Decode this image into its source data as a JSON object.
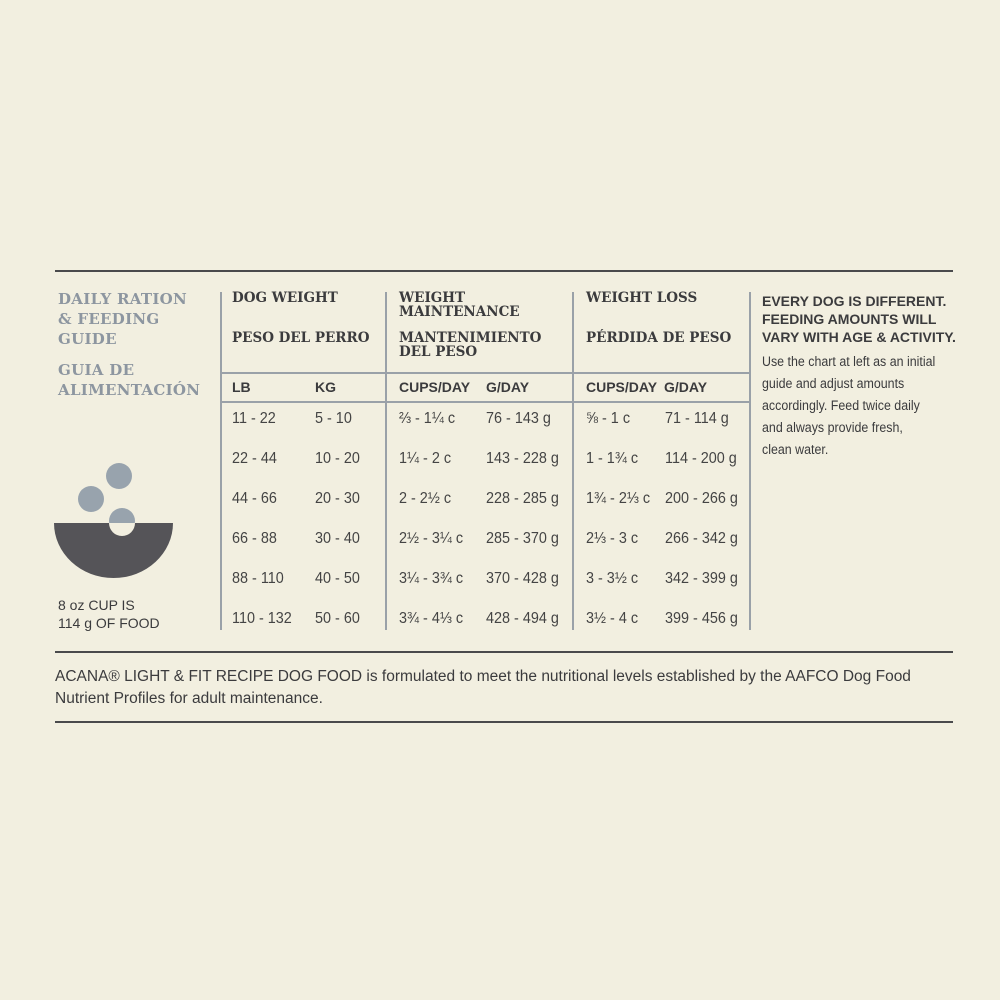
{
  "guide_title": [
    "DAILY RATION",
    "& FEEDING",
    "GUIDE"
  ],
  "guide_title_es": [
    "GUIA DE",
    "ALIMENTACIÓN"
  ],
  "cup_note": [
    "8 oz CUP IS",
    "114 g OF FOOD"
  ],
  "columns": {
    "dog_weight": {
      "title": "DOG WEIGHT",
      "title_es": "PESO DEL PERRO",
      "sub": [
        "LB",
        "KG"
      ]
    },
    "maintenance": {
      "title": "WEIGHT MAINTENANCE",
      "title_es": "MANTENIMIENTO DEL PESO",
      "sub": [
        "CUPS/DAY",
        "G/DAY"
      ]
    },
    "loss": {
      "title": "WEIGHT LOSS",
      "title_es": "PÉRDIDA DE PESO",
      "sub": [
        "CUPS/DAY",
        "G/DAY"
      ]
    }
  },
  "rows": [
    [
      "11 - 22",
      "5 - 10",
      "⅔ - 1¼ c",
      "76 - 143 g",
      "⅝ - 1 c",
      "71 - 114 g"
    ],
    [
      "22 - 44",
      "10 - 20",
      "1¼ - 2 c",
      "143 - 228 g",
      "1 - 1¾ c",
      "114 - 200 g"
    ],
    [
      "44 - 66",
      "20 - 30",
      "2 - 2½ c",
      "228 - 285 g",
      "1¾ - 2⅓ c",
      "200 - 266 g"
    ],
    [
      "66 - 88",
      "30 - 40",
      "2½ - 3¼ c",
      "285 - 370 g",
      "2⅓ - 3 c",
      "266 - 342 g"
    ],
    [
      "88 - 110",
      "40 - 50",
      "3¼ - 3¾ c",
      "370 - 428 g",
      "3 - 3½ c",
      "342 - 399 g"
    ],
    [
      "110 - 132",
      "50 - 60",
      "3¾ - 4⅓ c",
      "428 - 494 g",
      "3½ - 4 c",
      "399 - 456 g"
    ]
  ],
  "side_heading": [
    "EVERY DOG IS DIFFERENT.",
    "FEEDING AMOUNTS WILL",
    "VARY WITH AGE & ACTIVITY."
  ],
  "side_text": [
    "Use the chart at left as an initial",
    "guide and adjust amounts",
    "accordingly. Feed twice daily",
    "and always provide fresh,",
    "clean water."
  ],
  "footer": "ACANA® LIGHT & FIT RECIPE DOG FOOD is formulated to meet the nutritional levels established by the AAFCO Dog Food Nutrient Profiles for adult maintenance.",
  "colors": {
    "background": "#f2efe0",
    "title_gray": "#8d96a0",
    "bowl": "#555458",
    "kibble": "#98a3ad"
  },
  "icons": [
    "bowl-with-kibble-icon"
  ]
}
